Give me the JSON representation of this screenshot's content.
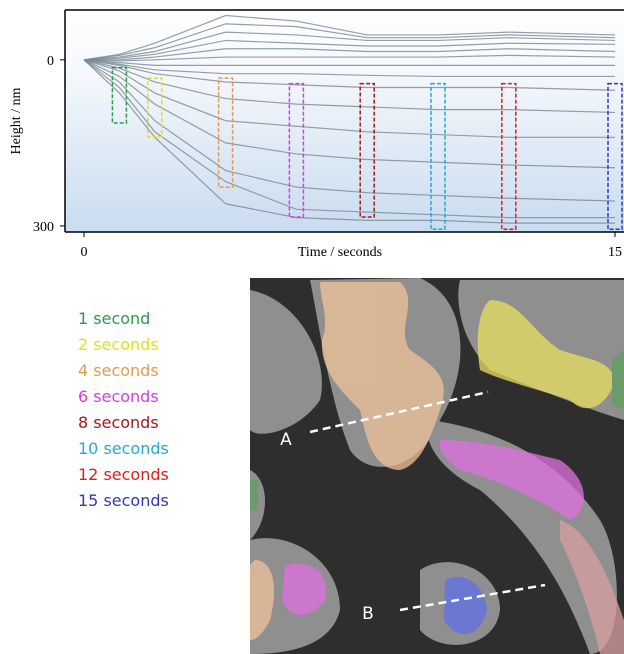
{
  "chart_data": {
    "type": "line",
    "xlabel": "Time / seconds",
    "ylabel": "Height / nm",
    "x": [
      0,
      1,
      2,
      4,
      6,
      8,
      10,
      12,
      15
    ],
    "xlim": [
      0,
      15
    ],
    "xticks": [
      0,
      15
    ],
    "ylim": [
      -90,
      311
    ],
    "yticks": [
      0,
      300
    ],
    "y_inverted": true,
    "line_color": "#7a8796",
    "series": [
      {
        "values": [
          0,
          -10,
          -30,
          -80,
          -70,
          -45,
          -45,
          -50,
          -45
        ]
      },
      {
        "values": [
          0,
          -8,
          -22,
          -65,
          -60,
          -40,
          -40,
          -45,
          -40
        ]
      },
      {
        "values": [
          0,
          -5,
          -15,
          -50,
          -45,
          -35,
          -35,
          -40,
          -35
        ]
      },
      {
        "values": [
          0,
          -3,
          -10,
          -35,
          -30,
          -25,
          -25,
          -30,
          -28
        ]
      },
      {
        "values": [
          0,
          0,
          -5,
          -20,
          -20,
          -15,
          -15,
          -20,
          -15
        ]
      },
      {
        "values": [
          0,
          2,
          0,
          -5,
          -5,
          -5,
          -5,
          -8,
          -5
        ]
      },
      {
        "values": [
          0,
          5,
          10,
          10,
          10,
          10,
          10,
          10,
          10
        ]
      },
      {
        "values": [
          0,
          8,
          18,
          25,
          25,
          28,
          30,
          30,
          30
        ]
      },
      {
        "values": [
          0,
          10,
          25,
          40,
          45,
          50,
          50,
          50,
          55
        ]
      },
      {
        "values": [
          0,
          15,
          40,
          70,
          80,
          85,
          90,
          90,
          95
        ]
      },
      {
        "values": [
          0,
          20,
          60,
          110,
          120,
          130,
          135,
          140,
          140
        ]
      },
      {
        "values": [
          0,
          30,
          80,
          150,
          170,
          180,
          185,
          190,
          195
        ]
      },
      {
        "values": [
          0,
          40,
          110,
          200,
          230,
          240,
          245,
          250,
          255
        ]
      },
      {
        "values": [
          0,
          50,
          130,
          220,
          270,
          275,
          280,
          285,
          285
        ]
      },
      {
        "values": [
          0,
          60,
          140,
          260,
          285,
          290,
          290,
          295,
          295
        ]
      }
    ],
    "highlights": [
      {
        "label": "1 second",
        "x": 1,
        "range": [
          14,
          114
        ],
        "color": "#2e9a4a"
      },
      {
        "label": "2 seconds",
        "x": 2,
        "range": [
          33,
          139
        ],
        "color": "#e6dc1e"
      },
      {
        "label": "4 seconds",
        "x": 4,
        "range": [
          33,
          230
        ],
        "color": "#e39a55"
      },
      {
        "label": "6 seconds",
        "x": 6,
        "range": [
          43,
          284
        ],
        "color": "#d83cd8"
      },
      {
        "label": "8 seconds",
        "x": 8,
        "range": [
          43,
          284
        ],
        "color": "#a01c1c"
      },
      {
        "label": "10 seconds",
        "x": 10,
        "range": [
          43,
          306
        ],
        "color": "#2aa6d6"
      },
      {
        "label": "12 seconds",
        "x": 12,
        "range": [
          43,
          306
        ],
        "color": "#e01e1e"
      },
      {
        "label": "15 seconds",
        "x": 15,
        "range": [
          43,
          306
        ],
        "color": "#3438b4"
      }
    ]
  },
  "image_panel": {
    "labels": [
      "A",
      "B"
    ]
  }
}
